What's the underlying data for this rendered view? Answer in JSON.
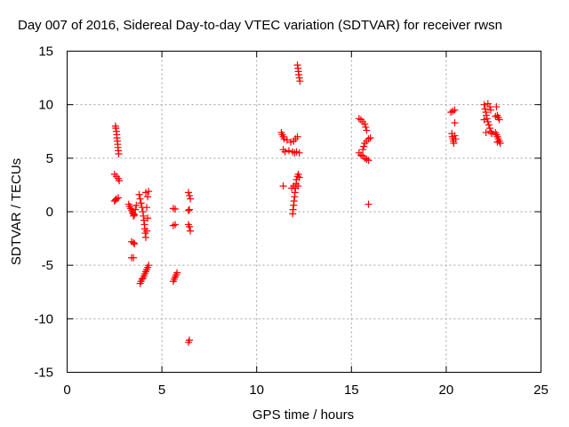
{
  "chart_data": {
    "type": "scatter",
    "title": "Day 007 of 2016, Sidereal Day-to-day VTEC variation (SDTVAR) for receiver rwsn",
    "xlabel": "GPS time / hours",
    "ylabel": "SDTVAR / TECUs",
    "xlim": [
      0,
      25
    ],
    "ylim": [
      -15,
      15
    ],
    "xticks": [
      0,
      5,
      10,
      15,
      20,
      25
    ],
    "yticks": [
      -15,
      -10,
      -5,
      0,
      5,
      10,
      15
    ],
    "grid": true,
    "marker": "+",
    "color": "#ff0000",
    "series": [
      {
        "name": "SDTVAR",
        "points": [
          [
            2.55,
            8.0
          ],
          [
            2.57,
            7.8
          ],
          [
            2.6,
            7.5
          ],
          [
            2.62,
            7.2
          ],
          [
            2.63,
            6.9
          ],
          [
            2.65,
            6.6
          ],
          [
            2.67,
            6.3
          ],
          [
            2.68,
            6.0
          ],
          [
            2.7,
            5.7
          ],
          [
            2.72,
            5.4
          ],
          [
            2.5,
            3.5
          ],
          [
            2.6,
            3.3
          ],
          [
            2.7,
            3.1
          ],
          [
            2.75,
            2.9
          ],
          [
            2.5,
            1.0
          ],
          [
            2.55,
            1.1
          ],
          [
            2.6,
            1.2
          ],
          [
            2.7,
            1.3
          ],
          [
            3.25,
            0.7
          ],
          [
            3.3,
            0.5
          ],
          [
            3.35,
            0.3
          ],
          [
            3.4,
            0.1
          ],
          [
            3.45,
            -0.1
          ],
          [
            3.5,
            -0.2
          ],
          [
            3.55,
            -0.3
          ],
          [
            3.5,
            -0.4
          ],
          [
            3.6,
            0.2
          ],
          [
            3.65,
            0.6
          ],
          [
            3.4,
            -2.8
          ],
          [
            3.5,
            -2.9
          ],
          [
            3.55,
            -3.0
          ],
          [
            3.4,
            -4.3
          ],
          [
            3.5,
            -4.3
          ],
          [
            3.8,
            1.6
          ],
          [
            3.85,
            1.2
          ],
          [
            3.9,
            0.8
          ],
          [
            3.95,
            0.4
          ],
          [
            4.0,
            0.0
          ],
          [
            4.02,
            -0.4
          ],
          [
            4.05,
            -0.8
          ],
          [
            4.08,
            -1.2
          ],
          [
            4.1,
            -1.6
          ],
          [
            4.12,
            -2.0
          ],
          [
            4.15,
            -2.4
          ],
          [
            4.2,
            -1.8
          ],
          [
            4.25,
            -0.6
          ],
          [
            4.2,
            0.4
          ],
          [
            4.25,
            1.4
          ],
          [
            4.3,
            1.9
          ],
          [
            4.15,
            1.8
          ],
          [
            3.9,
            -6.5
          ],
          [
            3.95,
            -6.3
          ],
          [
            4.0,
            -6.2
          ],
          [
            4.05,
            -6.0
          ],
          [
            4.1,
            -5.8
          ],
          [
            4.15,
            -5.6
          ],
          [
            4.2,
            -5.4
          ],
          [
            4.25,
            -5.2
          ],
          [
            4.3,
            -5.0
          ],
          [
            3.85,
            -6.7
          ],
          [
            5.6,
            0.3
          ],
          [
            5.7,
            0.25
          ],
          [
            5.6,
            -1.3
          ],
          [
            5.7,
            -1.2
          ],
          [
            5.6,
            -6.5
          ],
          [
            5.65,
            -6.3
          ],
          [
            5.7,
            -6.1
          ],
          [
            5.75,
            -5.9
          ],
          [
            5.8,
            -5.7
          ],
          [
            6.4,
            1.8
          ],
          [
            6.45,
            1.5
          ],
          [
            6.5,
            1.2
          ],
          [
            6.4,
            0.1
          ],
          [
            6.45,
            0.2
          ],
          [
            6.4,
            -1.2
          ],
          [
            6.45,
            -1.4
          ],
          [
            6.5,
            -1.8
          ],
          [
            6.4,
            -12.2
          ],
          [
            6.45,
            -12.0
          ],
          [
            11.3,
            7.4
          ],
          [
            11.35,
            7.2
          ],
          [
            11.4,
            7.0
          ],
          [
            11.45,
            6.8
          ],
          [
            11.6,
            6.7
          ],
          [
            11.8,
            6.5
          ],
          [
            11.95,
            6.6
          ],
          [
            12.05,
            6.8
          ],
          [
            12.15,
            7.0
          ],
          [
            11.4,
            5.8
          ],
          [
            11.5,
            5.6
          ],
          [
            11.7,
            5.7
          ],
          [
            11.9,
            5.6
          ],
          [
            12.0,
            5.5
          ],
          [
            12.1,
            5.6
          ],
          [
            12.25,
            5.5
          ],
          [
            11.4,
            2.4
          ],
          [
            11.9,
            -0.2
          ],
          [
            11.92,
            0.2
          ],
          [
            11.95,
            0.6
          ],
          [
            11.97,
            1.0
          ],
          [
            12.0,
            1.4
          ],
          [
            12.02,
            1.8
          ],
          [
            12.05,
            2.2
          ],
          [
            12.08,
            2.6
          ],
          [
            12.1,
            3.0
          ],
          [
            12.15,
            3.3
          ],
          [
            12.2,
            3.5
          ],
          [
            12.25,
            3.2
          ],
          [
            12.18,
            2.4
          ],
          [
            11.85,
            2.2
          ],
          [
            11.95,
            2.4
          ],
          [
            12.15,
            13.7
          ],
          [
            12.18,
            13.4
          ],
          [
            12.2,
            13.1
          ],
          [
            12.22,
            12.8
          ],
          [
            12.25,
            12.5
          ],
          [
            12.28,
            12.2
          ],
          [
            15.4,
            8.7
          ],
          [
            15.5,
            8.6
          ],
          [
            15.6,
            8.4
          ],
          [
            15.7,
            8.2
          ],
          [
            15.75,
            7.9
          ],
          [
            15.8,
            7.6
          ],
          [
            15.4,
            5.5
          ],
          [
            15.5,
            5.3
          ],
          [
            15.6,
            5.2
          ],
          [
            15.7,
            5.0
          ],
          [
            15.8,
            4.9
          ],
          [
            15.9,
            4.8
          ],
          [
            15.6,
            5.8
          ],
          [
            15.65,
            6.1
          ],
          [
            15.7,
            6.4
          ],
          [
            15.8,
            6.6
          ],
          [
            15.9,
            6.8
          ],
          [
            16.0,
            6.9
          ],
          [
            15.9,
            0.7
          ],
          [
            20.25,
            9.3
          ],
          [
            20.35,
            9.4
          ],
          [
            20.45,
            9.5
          ],
          [
            20.3,
            7.3
          ],
          [
            20.32,
            7.0
          ],
          [
            20.35,
            6.8
          ],
          [
            20.38,
            6.6
          ],
          [
            20.4,
            6.4
          ],
          [
            20.45,
            7.1
          ],
          [
            20.5,
            6.8
          ],
          [
            20.45,
            8.3
          ],
          [
            22.0,
            10.0
          ],
          [
            22.05,
            9.6
          ],
          [
            22.1,
            9.3
          ],
          [
            22.12,
            9.0
          ],
          [
            22.15,
            8.7
          ],
          [
            22.2,
            8.4
          ],
          [
            22.25,
            8.1
          ],
          [
            22.3,
            7.8
          ],
          [
            22.35,
            7.5
          ],
          [
            22.4,
            7.3
          ],
          [
            22.3,
            9.8
          ],
          [
            22.35,
            9.5
          ],
          [
            22.2,
            10.1
          ],
          [
            22.1,
            7.4
          ],
          [
            22.0,
            8.6
          ],
          [
            22.65,
            9.8
          ],
          [
            22.7,
            9.0
          ],
          [
            22.75,
            8.8
          ],
          [
            22.8,
            8.6
          ],
          [
            22.6,
            8.9
          ],
          [
            22.6,
            7.4
          ],
          [
            22.65,
            7.2
          ],
          [
            22.7,
            7.0
          ],
          [
            22.75,
            6.8
          ],
          [
            22.8,
            6.6
          ],
          [
            22.85,
            6.4
          ],
          [
            22.7,
            6.5
          ]
        ]
      }
    ]
  }
}
